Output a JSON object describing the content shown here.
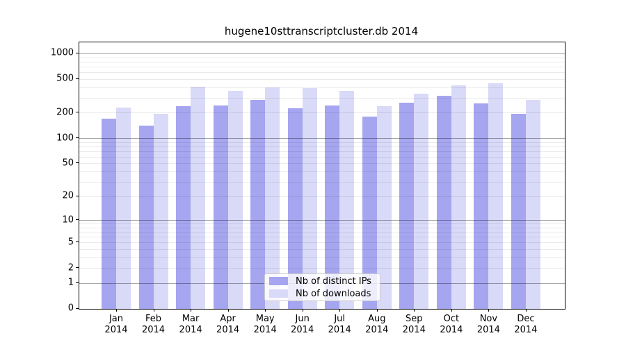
{
  "chart_data": {
    "type": "bar",
    "title": "hugene10sttranscriptcluster.db 2014",
    "categories": [
      "Jan",
      "Feb",
      "Mar",
      "Apr",
      "May",
      "Jun",
      "Jul",
      "Aug",
      "Sep",
      "Oct",
      "Nov",
      "Dec"
    ],
    "year_label": "2014",
    "series": [
      {
        "name": "Nb of distinct IPs",
        "color": "#a5a5f0",
        "values": [
          170,
          142,
          240,
          245,
          285,
          225,
          245,
          180,
          265,
          320,
          260,
          195
        ]
      },
      {
        "name": "Nb of downloads",
        "color": "#d9d9f8",
        "values": [
          230,
          196,
          410,
          365,
          400,
          395,
          360,
          240,
          340,
          420,
          450,
          285
        ]
      }
    ],
    "y_ticks": [
      0,
      1,
      2,
      5,
      10,
      20,
      50,
      100,
      200,
      500,
      1000
    ],
    "y_scale": "log10(1+x)",
    "ylim": [
      0,
      1300
    ],
    "grid": "horizontal major at 1,10,100,1000 and minor at 2-9 per decade",
    "legend_position": "lower center inside plot",
    "colors": {
      "grid_major": "#a8a8a8",
      "grid_minor": "#ececec",
      "axis": "#000000",
      "background": "#ffffff"
    }
  }
}
